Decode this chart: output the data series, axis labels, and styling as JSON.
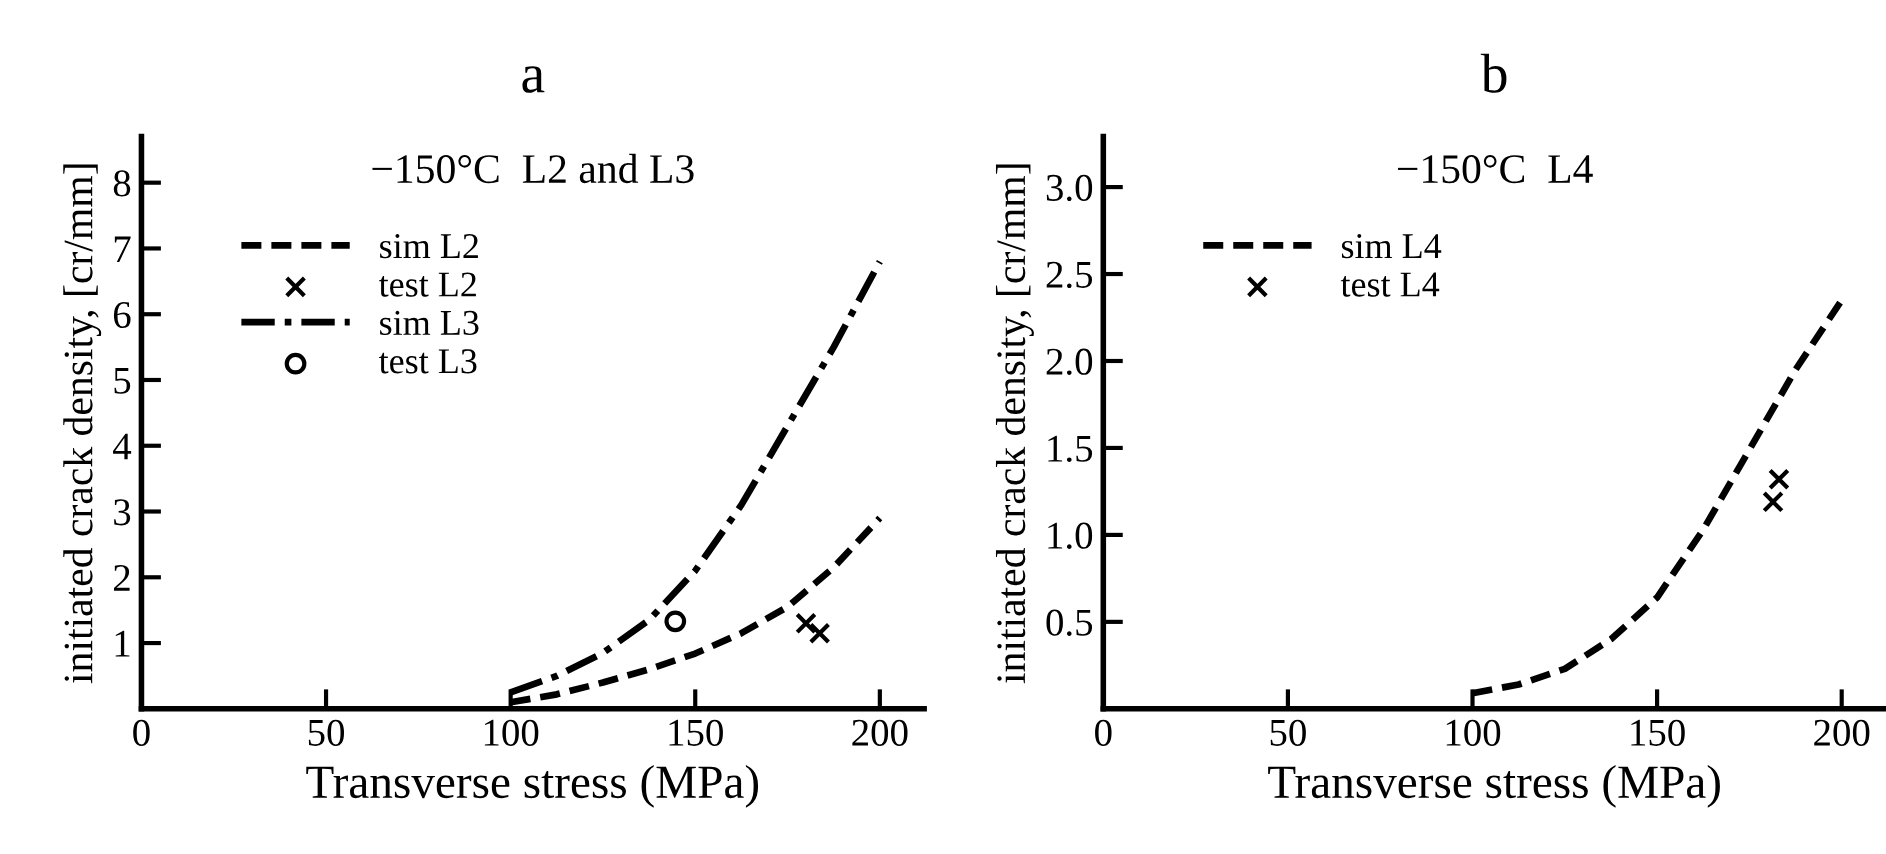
{
  "chart_data": [
    {
      "type": "line",
      "title": "a",
      "xlabel": "Transverse stress (MPa)",
      "ylabel": "initiated crack density, [cr/mm]",
      "annotations": [
        "−150°C  L2 and L3"
      ],
      "xlim": [
        0,
        212
      ],
      "ylim": [
        0,
        8.7
      ],
      "xticks": [
        0,
        50,
        100,
        150,
        200
      ],
      "yticks": [
        1,
        2,
        3,
        4,
        5,
        6,
        7,
        8
      ],
      "grid": false,
      "legend": "top left",
      "series": [
        {
          "name": "sim L2",
          "color": "#000000",
          "line_style": "dashed",
          "x": [
            100,
            112.5,
            125,
            137.5,
            150,
            162.5,
            175,
            187.5,
            200
          ],
          "values": [
            0.1,
            0.22,
            0.4,
            0.6,
            0.84,
            1.15,
            1.55,
            2.15,
            2.9
          ]
        },
        {
          "name": "test L2",
          "type": "scatter",
          "color": "#000000",
          "marker": "cross",
          "x": [
            180,
            183.7
          ],
          "values": [
            1.3,
            1.15
          ]
        },
        {
          "name": "sim L3",
          "color": "#000000",
          "line_style": "dashdot",
          "x": [
            100,
            112.5,
            125,
            137.5,
            150,
            162.5,
            175,
            187.5,
            200
          ],
          "values": [
            0.25,
            0.5,
            0.85,
            1.35,
            2.1,
            3.1,
            4.3,
            5.5,
            6.8
          ]
        },
        {
          "name": "test L3",
          "type": "scatter",
          "color": "#000000",
          "marker": "circle",
          "x": [
            144.6
          ],
          "values": [
            1.33
          ]
        }
      ]
    },
    {
      "type": "line",
      "title": "b",
      "xlabel": "Transverse stress (MPa)",
      "ylabel": "initiated crack density, [cr/mm]",
      "annotations": [
        "−150°C  L4"
      ],
      "xlim": [
        0,
        212
      ],
      "ylim": [
        0,
        3.29
      ],
      "xticks": [
        0,
        50,
        100,
        150,
        200
      ],
      "yticks": [
        0.5,
        {
          "value": 1,
          "label": "1.0"
        },
        1.5,
        {
          "value": 2,
          "label": "2.0"
        },
        2.5,
        {
          "value": 3,
          "label": "3.0"
        }
      ],
      "grid": false,
      "legend": "top left",
      "series": [
        {
          "name": "sim L4",
          "color": "#000000",
          "line_style": "dashed",
          "x": [
            100,
            112.5,
            125,
            137.5,
            150,
            162.5,
            175,
            187.5,
            200
          ],
          "values": [
            0.09,
            0.14,
            0.23,
            0.4,
            0.64,
            1.03,
            1.49,
            1.95,
            2.35
          ]
        },
        {
          "name": "test L4",
          "type": "scatter",
          "color": "#000000",
          "marker": "cross",
          "x": [
            181.4,
            183
          ],
          "values": [
            1.19,
            1.32
          ]
        }
      ]
    }
  ]
}
